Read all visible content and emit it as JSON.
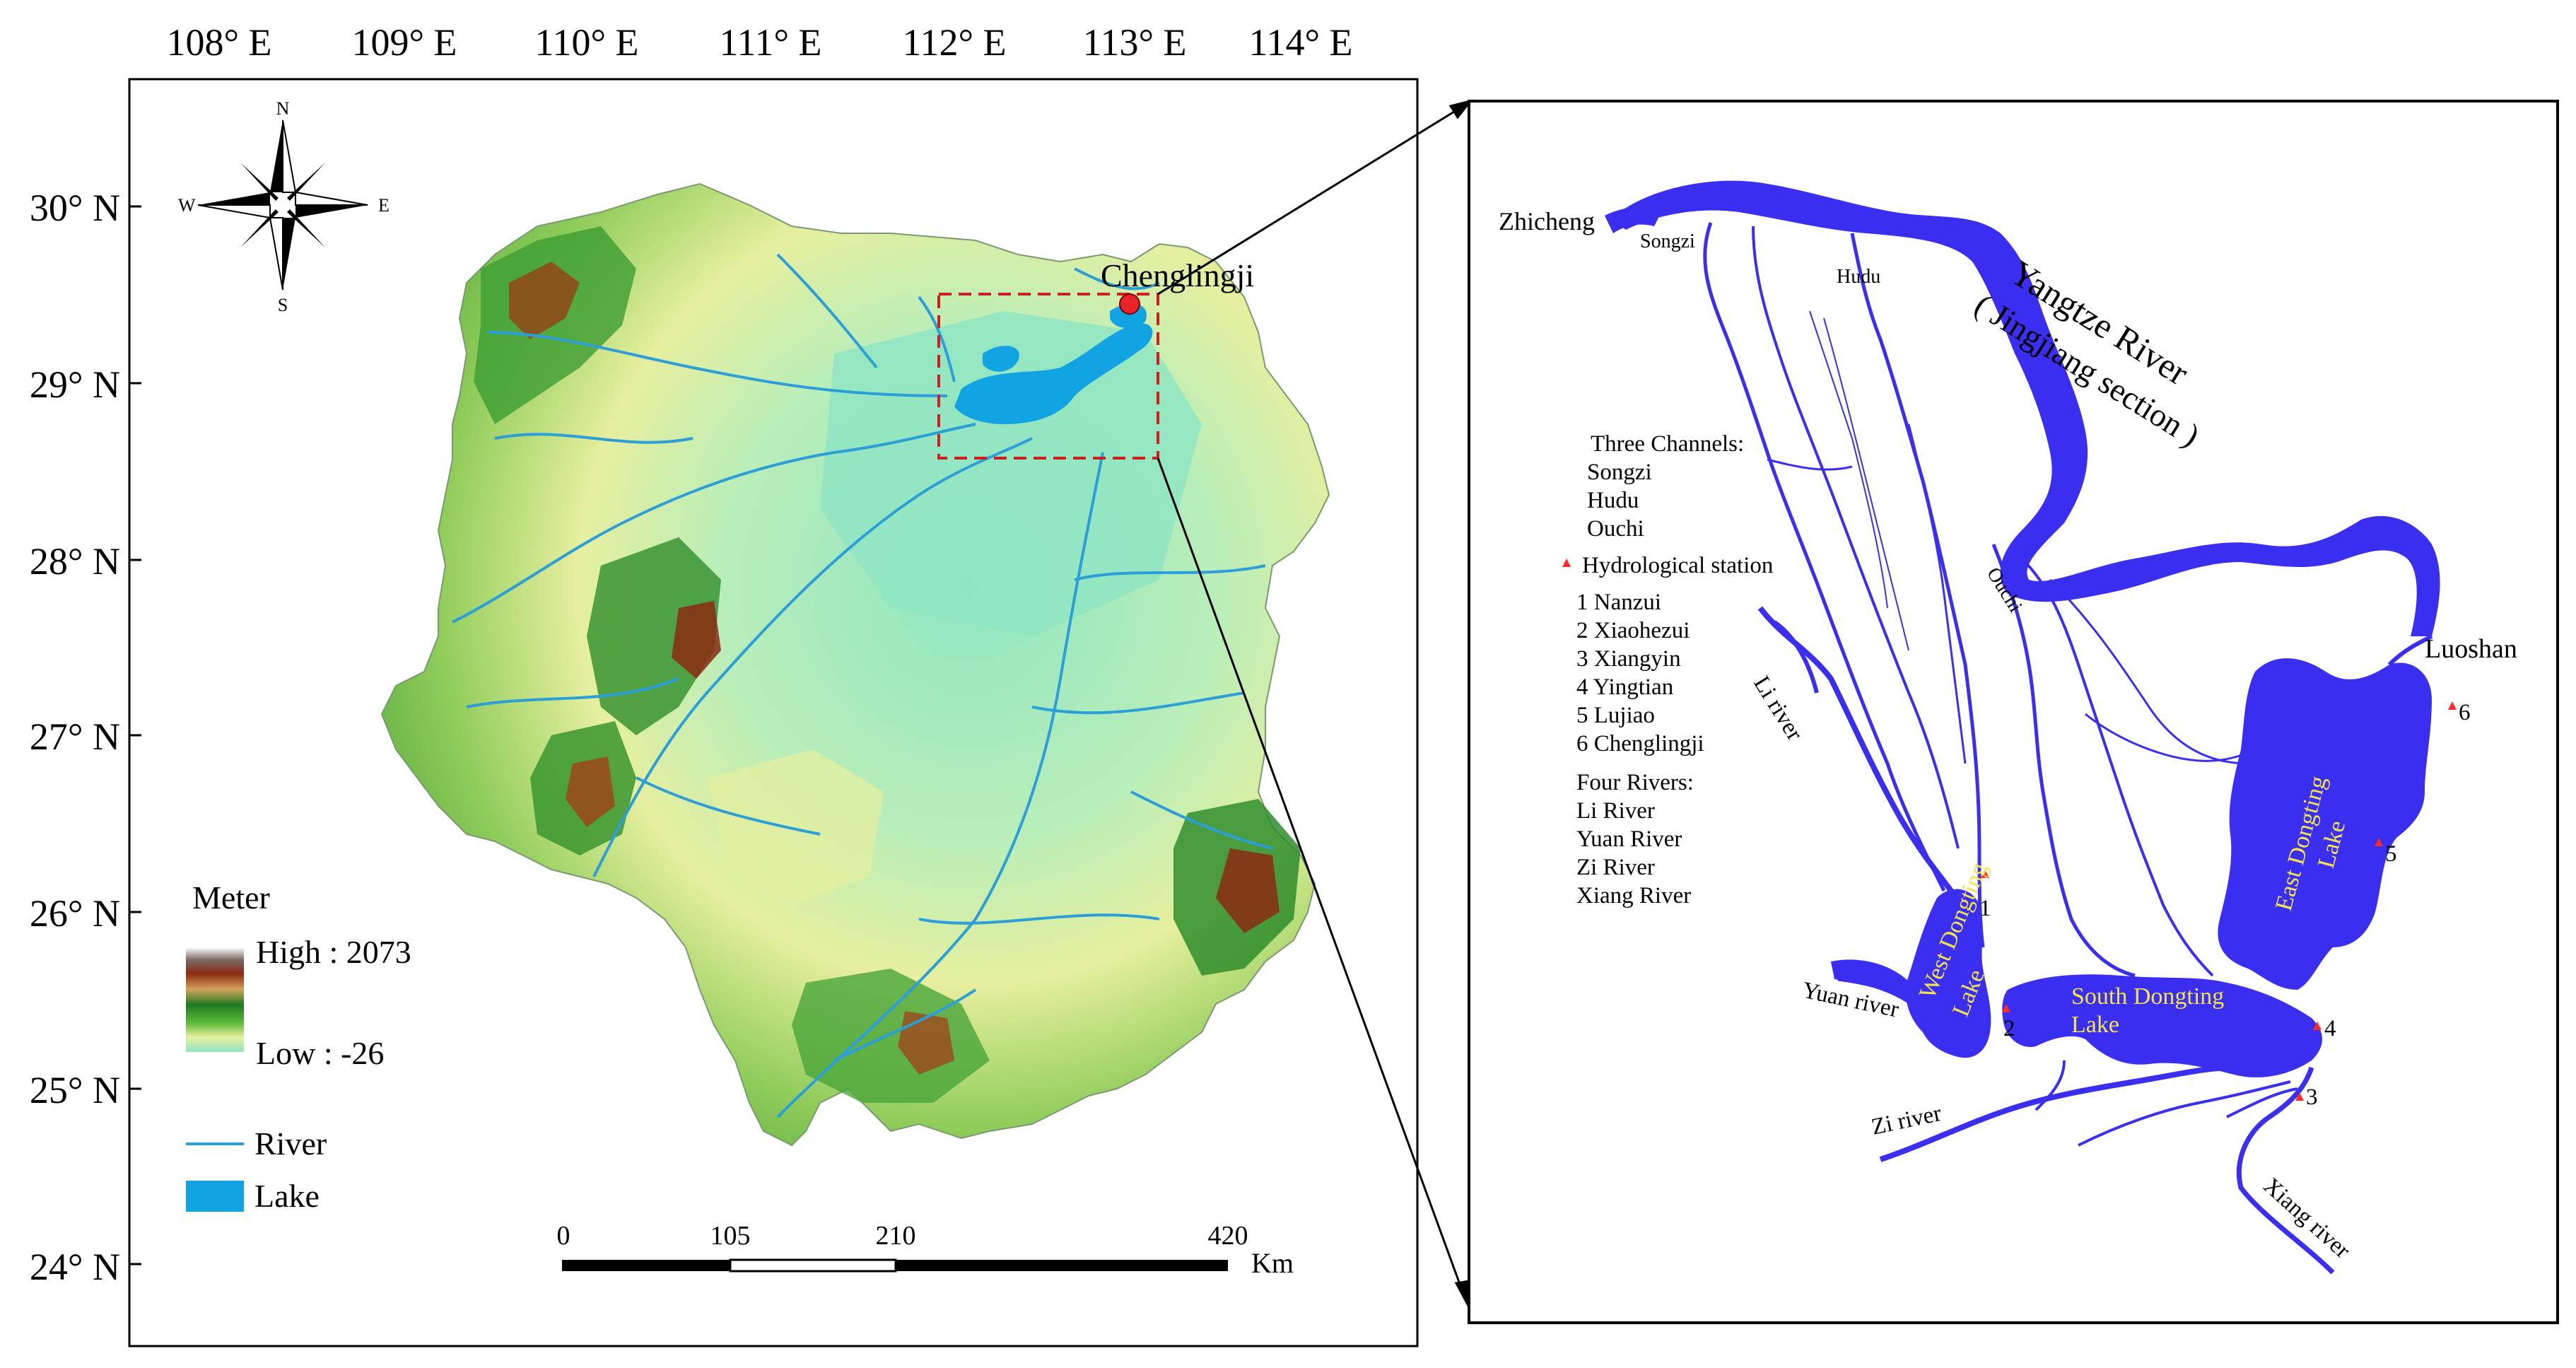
{
  "left_map": {
    "lon_labels": [
      "108° E",
      "109° E",
      "110° E",
      "111° E",
      "112° E",
      "113° E",
      "114° E"
    ],
    "lat_labels": [
      "30° N",
      "29° N",
      "28° N",
      "27° N",
      "26° N",
      "25° N",
      "24° N"
    ],
    "compass": {
      "n": "N",
      "s": "S",
      "e": "E",
      "w": "W"
    },
    "station_label": "Chenglingji",
    "legend": {
      "title": "Meter",
      "high": "High : 2073",
      "low": "Low : -26",
      "river": "River",
      "lake": "Lake"
    },
    "scale": {
      "ticks": [
        "0",
        "105",
        "210",
        "420"
      ],
      "unit": "Km"
    },
    "colors": {
      "lowland": "#8fe5c2",
      "upland": "#e6ef9e",
      "forest": "#2f8d2b",
      "peak": "#8b2a12",
      "river": "#2c9ed8",
      "lake": "#12a3e3",
      "box": "#cc2020"
    }
  },
  "right_map": {
    "place_labels": {
      "zhicheng": "Zhicheng",
      "songzi": "Songzi",
      "hudu": "Hudu",
      "ouchi": "Ouchi",
      "luoshan": "Luoshan"
    },
    "yangtze_label_1": "Yangtze River",
    "yangtze_label_2": "( Jingjiang section )",
    "river_labels": {
      "li": "Li river",
      "yuan": "Yuan river",
      "zi": "Zi river",
      "xiang": "Xiang river"
    },
    "lake_labels": {
      "west_1": "West Dongting",
      "west_2": "Lake",
      "south_1": "South Dongting",
      "south_2": "Lake",
      "east_1": "East Dongting",
      "east_2": "Lake"
    },
    "station_numbers": [
      "1",
      "2",
      "3",
      "4",
      "5",
      "6"
    ],
    "legend": {
      "three_channels_title": "Three Channels:",
      "channels": [
        "Songzi",
        "Hudu",
        "Ouchi"
      ],
      "hydro_title": "Hydrological station",
      "stations": [
        "1 Nanzui",
        "2  Xiaohezui",
        "3  Xiangyin",
        "4  Yingtian",
        "5  Lujiao",
        "6  Chenglingji"
      ],
      "four_rivers_title": "Four Rivers:",
      "rivers": [
        "Li River",
        "Yuan River",
        "Zi River",
        "Xiang River"
      ]
    },
    "colors": {
      "water": "#3a2ff0",
      "station": "#ff2a2a"
    }
  }
}
